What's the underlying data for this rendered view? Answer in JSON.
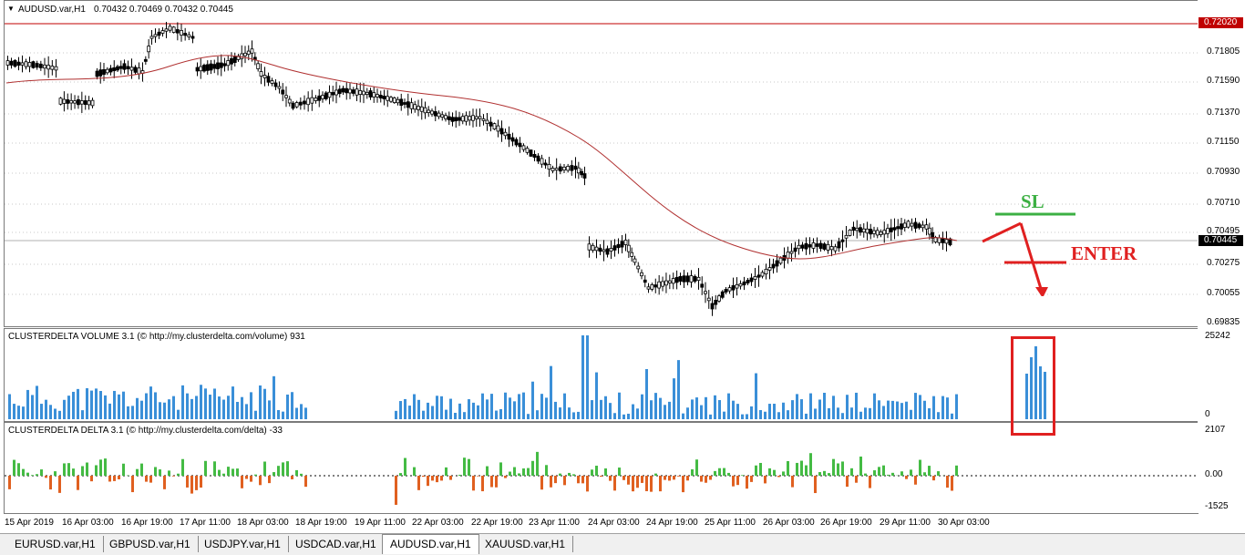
{
  "main": {
    "symbol_title": "AUDUSD.var,H1",
    "ohlc": "0.70432 0.70469 0.70432 0.70445",
    "price_ticks": [
      "0.71805",
      "0.71590",
      "0.71370",
      "0.71150",
      "0.70930",
      "0.70710",
      "0.70495",
      "0.70275",
      "0.70055",
      "0.69835"
    ],
    "resistance_label": "0.72020",
    "current_price_label": "0.70445",
    "annotation_sl": "SL",
    "annotation_enter": "ENTER",
    "colors": {
      "ma": "#b03030",
      "resistance": "#c00000",
      "sl": "#3cb043",
      "enter": "#e02020"
    }
  },
  "volume": {
    "title": "CLUSTERDELTA VOLUME 3.1 (© http://my.clusterdelta.com/volume) 931",
    "max_label": "25242",
    "zero_label": "0",
    "bar_color": "#3a8fd8"
  },
  "delta": {
    "title": "CLUSTERDELTA DELTA 3.1 (© http://my.clusterdelta.com/delta) -33",
    "top_label": "2107",
    "zero_label": "0.00",
    "bottom_label": "-1525",
    "pos_color": "#44bb44",
    "neg_color": "#e06020"
  },
  "time_axis": [
    "15 Apr 2019",
    "16 Apr 03:00",
    "16 Apr 19:00",
    "17 Apr 11:00",
    "18 Apr 03:00",
    "18 Apr 19:00",
    "19 Apr 11:00",
    "22 Apr 03:00",
    "22 Apr 19:00",
    "23 Apr 11:00",
    "24 Apr 03:00",
    "24 Apr 19:00",
    "25 Apr 11:00",
    "26 Apr 03:00",
    "26 Apr 19:00",
    "29 Apr 11:00",
    "30 Apr 03:00"
  ],
  "tabs": [
    "EURUSD.var,H1",
    "GBPUSD.var,H1",
    "USDJPY.var,H1",
    "USDCAD.var,H1",
    "AUDUSD.var,H1",
    "XAUUSD.var,H1"
  ],
  "active_tab": "AUDUSD.var,H1"
}
